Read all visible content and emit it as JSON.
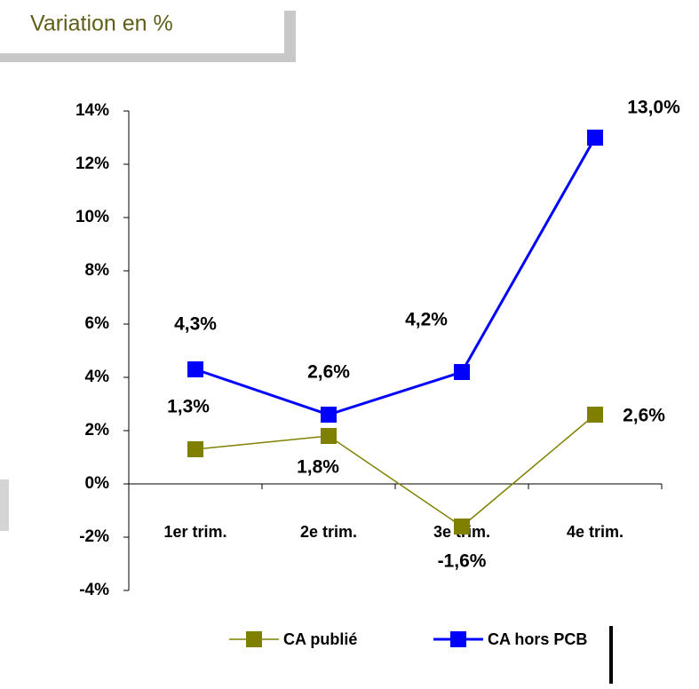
{
  "chart_data": {
    "type": "line",
    "title": "Variation en %",
    "categories": [
      "1er trim.",
      "2e trim.",
      "3e trim.",
      "4e trim."
    ],
    "series": [
      {
        "name": "CA publié",
        "color": "#808000",
        "values": [
          1.3,
          1.8,
          -1.6,
          2.6
        ],
        "value_labels": [
          "1,3%",
          "1,8%",
          "-1,6%",
          "2,6%"
        ]
      },
      {
        "name": "CA hors PCB",
        "color": "#0000ff",
        "values": [
          4.3,
          2.6,
          4.2,
          13.0
        ],
        "value_labels": [
          "4,3%",
          "2,6%",
          "4,2%",
          "13,0%"
        ]
      }
    ],
    "ylim": [
      -4,
      14
    ],
    "yticks": [
      {
        "value": -4,
        "label": "-4%"
      },
      {
        "value": -2,
        "label": "-2%"
      },
      {
        "value": 0,
        "label": "0%"
      },
      {
        "value": 2,
        "label": "2%"
      },
      {
        "value": 4,
        "label": "4%"
      },
      {
        "value": 6,
        "label": "6%"
      },
      {
        "value": 8,
        "label": "8%"
      },
      {
        "value": 10,
        "label": "10%"
      },
      {
        "value": 12,
        "label": "12%"
      },
      {
        "value": 14,
        "label": "14%"
      }
    ],
    "legend": "bottom"
  }
}
